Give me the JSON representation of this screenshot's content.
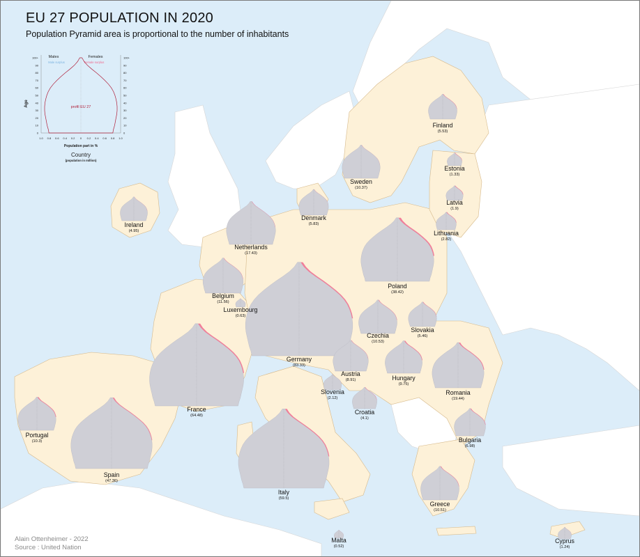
{
  "title": "EU 27 POPULATION IN 2020",
  "subtitle": "Population Pyramid area is proportional to the number of inhabitants",
  "credit": {
    "author": "Alain Ottenheimer - 2022",
    "source": "Source : United Nation"
  },
  "colors": {
    "sea": "#dcedf9",
    "land_eu": "#fdf1d8",
    "land_other": "#ffffff",
    "border": "#d6b98a",
    "pyramid": "#cfcfd6",
    "female_surplus": "#f06a8e",
    "male_surplus": "#7fb5e0",
    "eu_profile": "#b0203a"
  },
  "legend": {
    "males": "Males",
    "females": "Females",
    "male_surplus": "Male surplus",
    "female_surplus": "Female surplus",
    "age_axis": "Age",
    "age_ticks": [
      "0",
      "5",
      "10",
      "15",
      "20",
      "25",
      "30",
      "35",
      "40",
      "45",
      "50",
      "55",
      "60",
      "65",
      "70",
      "75",
      "80",
      "85",
      "90",
      "95",
      "100+"
    ],
    "x_axis": "Population part in %",
    "x_ticks": [
      "1.0",
      "0.8",
      "0.6",
      "0.4",
      "0.2",
      "0",
      "0.2",
      "0.4",
      "0.6",
      "0.8",
      "1.0"
    ],
    "profile": "profil EU 27",
    "country": "Country",
    "country_sub": "(population in million)"
  },
  "countries": [
    {
      "name": "Finland",
      "pop": "(5.53)",
      "scale": 0.64,
      "female_bias": 0.45
    },
    {
      "name": "Sweden",
      "pop": "(10.37)",
      "scale": 0.85,
      "female_bias": 0.1
    },
    {
      "name": "Estonia",
      "pop": "(1.33)",
      "scale": 0.33,
      "female_bias": 0.9
    },
    {
      "name": "Latvia",
      "pop": "(1.9)",
      "scale": 0.38,
      "female_bias": 1.0
    },
    {
      "name": "Lithuania",
      "pop": "(2.82)",
      "scale": 0.45,
      "female_bias": 0.9
    },
    {
      "name": "Ireland",
      "pop": "(4.95)",
      "scale": 0.61,
      "female_bias": 0.15
    },
    {
      "name": "Denmark",
      "pop": "(5.83)",
      "scale": 0.66,
      "female_bias": 0.15
    },
    {
      "name": "Netherlands",
      "pop": "(17.43)",
      "scale": 1.1,
      "female_bias": 0.2
    },
    {
      "name": "Poland",
      "pop": "(38.42)",
      "scale": 1.63,
      "female_bias": 0.7
    },
    {
      "name": "Belgium",
      "pop": "(11.56)",
      "scale": 0.9,
      "female_bias": 0.25
    },
    {
      "name": "Luxembourg",
      "pop": "(0.63)",
      "scale": 0.22,
      "female_bias": 0.1
    },
    {
      "name": "Germany",
      "pop": "(83.33)",
      "scale": 2.4,
      "female_bias": 0.45
    },
    {
      "name": "Czechia",
      "pop": "(10.53)",
      "scale": 0.86,
      "female_bias": 0.35
    },
    {
      "name": "Slovakia",
      "pop": "(5.46)",
      "scale": 0.63,
      "female_bias": 0.45
    },
    {
      "name": "France",
      "pop": "(64.48)",
      "scale": 2.11,
      "female_bias": 0.5
    },
    {
      "name": "Austria",
      "pop": "(8.91)",
      "scale": 0.79,
      "female_bias": 0.3
    },
    {
      "name": "Hungary",
      "pop": "(9.75)",
      "scale": 0.83,
      "female_bias": 0.7
    },
    {
      "name": "Romania",
      "pop": "(19.44)",
      "scale": 1.16,
      "female_bias": 0.6
    },
    {
      "name": "Slovenia",
      "pop": "(2.12)",
      "scale": 0.4,
      "female_bias": 0.1
    },
    {
      "name": "Croatia",
      "pop": "(4.1)",
      "scale": 0.55,
      "female_bias": 0.5
    },
    {
      "name": "Portugal",
      "pop": "(10.3)",
      "scale": 0.85,
      "female_bias": 0.7
    },
    {
      "name": "Spain",
      "pop": "(47.36)",
      "scale": 1.82,
      "female_bias": 0.35
    },
    {
      "name": "Italy",
      "pop": "(59.5)",
      "scale": 2.03,
      "female_bias": 0.45
    },
    {
      "name": "Bulgaria",
      "pop": "(6.98)",
      "scale": 0.7,
      "female_bias": 0.6
    },
    {
      "name": "Greece",
      "pop": "(10.51)",
      "scale": 0.86,
      "female_bias": 0.4
    },
    {
      "name": "Malta",
      "pop": "(0.52)",
      "scale": 0.21,
      "female_bias": 0.2
    },
    {
      "name": "Cyprus",
      "pop": "(1.24)",
      "scale": 0.3,
      "female_bias": 0.2
    }
  ]
}
